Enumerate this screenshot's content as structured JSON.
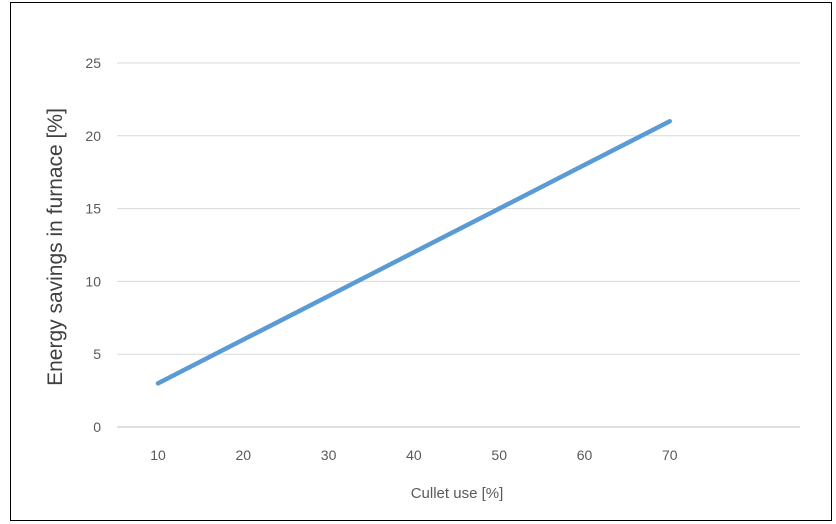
{
  "chart_data": {
    "type": "line",
    "title": "",
    "xlabel": "Cullet use [%]",
    "ylabel": "Energy savings in furnace [%]",
    "x": [
      10,
      20,
      30,
      40,
      50,
      60,
      70
    ],
    "xticks": [
      "10",
      "20",
      "30",
      "40",
      "50",
      "60",
      "70"
    ],
    "yticks": [
      "0",
      "5",
      "10",
      "15",
      "20",
      "25"
    ],
    "ylim": [
      0,
      25
    ],
    "series": [
      {
        "values": [
          3,
          6,
          9,
          12,
          15,
          18,
          21
        ]
      }
    ],
    "grid": true,
    "legend": "none",
    "colors": {
      "line": "#5B9BD5",
      "grid": "#D9D9D9",
      "axis": "#BFBFBF"
    }
  }
}
